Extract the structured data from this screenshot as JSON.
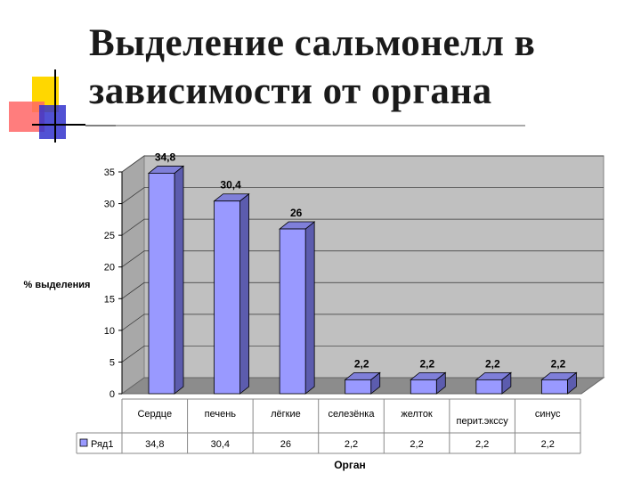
{
  "page": {
    "title_line1": "Выделение сальмонелл в",
    "title_line2": "зависимости от органа"
  },
  "chart_data": {
    "type": "bar",
    "categories": [
      "Сердце",
      "печень",
      "лёгкие",
      "селезёнка",
      "желток",
      "перит.экссу",
      "синус"
    ],
    "series": [
      {
        "name": "Ряд1",
        "values": [
          34.8,
          30.4,
          26,
          2.2,
          2.2,
          2.2,
          2.2
        ]
      }
    ],
    "data_labels": [
      "34,8",
      "30,4",
      "26",
      "2,2",
      "2,2",
      "2,2",
      "2,2"
    ],
    "xlabel": "Орган",
    "ylabel": "% выделения",
    "ylim": [
      0,
      35
    ],
    "yticks": [
      0,
      5,
      10,
      15,
      20,
      25,
      30,
      35
    ],
    "grid": true,
    "legend": "data-table-left",
    "colors": {
      "bar": "#9999ff",
      "bar_side": "#5c5cae",
      "bar_top": "#7f7fd9",
      "wall": "#c0c0c0",
      "floor": "#8c8c8c"
    }
  }
}
